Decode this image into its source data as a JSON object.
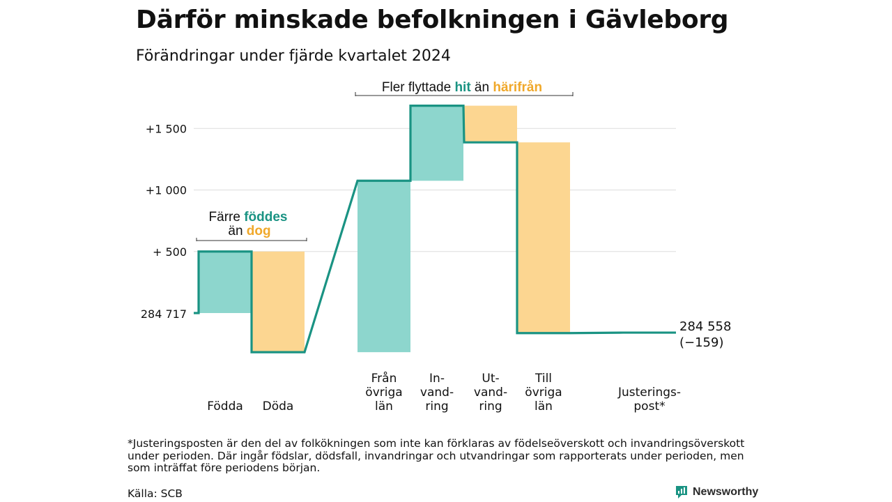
{
  "title": "Därför minskade befolkningen i Gävleborg",
  "subtitle": "Förändringar under fjärde kvartalet 2024",
  "colors": {
    "increase": "#8dd6cd",
    "decrease": "#fcd691",
    "line": "#1a9383",
    "grid": "#dddddd",
    "accent_teal": "#1a9383",
    "accent_orange": "#f0a82a"
  },
  "chart_data": {
    "type": "waterfall",
    "start_value": 284717,
    "start_label": "284 717",
    "end_value": 284558,
    "end_label": "284 558",
    "end_change_label": "(−159)",
    "steps": [
      {
        "label_lines": [
          "Födda"
        ],
        "change": 500,
        "kind": "increase"
      },
      {
        "label_lines": [
          "Döda"
        ],
        "change": -818,
        "kind": "decrease"
      },
      {
        "label_lines": [
          "Från",
          "övriga",
          "län"
        ],
        "change": 1393,
        "kind": "increase"
      },
      {
        "label_lines": [
          "In-",
          "vand-",
          "ring"
        ],
        "change": 610,
        "kind": "increase"
      },
      {
        "label_lines": [
          "Ut-",
          "vand-",
          "ring"
        ],
        "change": -298,
        "kind": "decrease"
      },
      {
        "label_lines": [
          "Till",
          "övriga",
          "län"
        ],
        "change": -1550,
        "kind": "decrease"
      },
      {
        "label_lines": [
          "Justerings-",
          "post*"
        ],
        "change": 4,
        "kind": "adjustment"
      }
    ],
    "y_ticks": [
      {
        "offset": 500,
        "label": "+  500"
      },
      {
        "offset": 1000,
        "label": "+1 000"
      },
      {
        "offset": 1500,
        "label": "+1 500"
      }
    ],
    "y_range_offset": [
      -318,
      1710
    ],
    "grid": true
  },
  "annotations": {
    "births": {
      "prefix": "Färre",
      "highlight1": "föddes",
      "middle": "än",
      "highlight2": "dog"
    },
    "migration": {
      "prefix": "Fler flyttade",
      "highlight1": "hit",
      "middle": "än",
      "highlight2": "härifrån"
    }
  },
  "footnote": "*Justeringsposten är den del av folkökningen som inte kan förklaras av födelseöverskott och invandringsöverskott under perioden. Där ingår födslar, dödsfall, invandringar och utvandringar som rapporterats under perioden, men som inträffat före periodens början.",
  "source": "Källa: SCB",
  "brand": "Newsworthy"
}
